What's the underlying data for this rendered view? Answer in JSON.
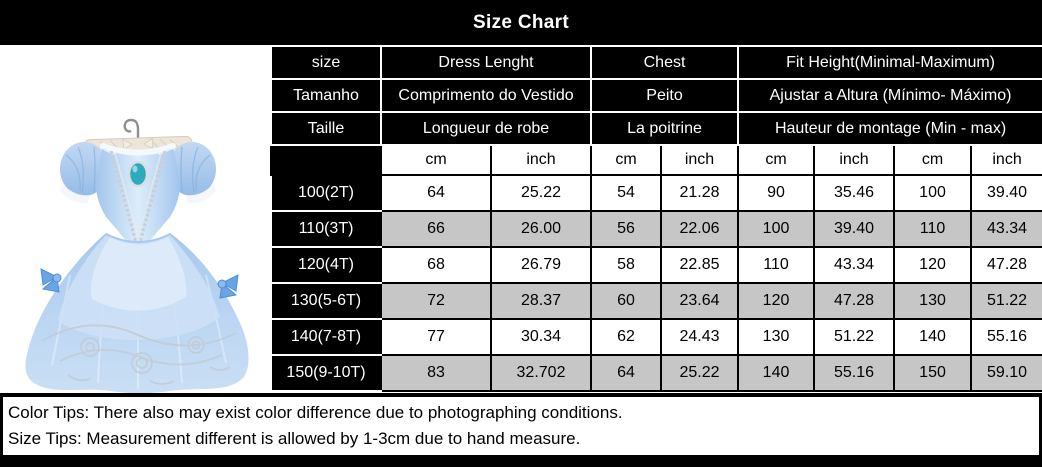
{
  "title": "Size Chart",
  "colors": {
    "header_bg": "#000000",
    "header_text": "#ffffff",
    "row_alt_gray": "#c6c6c6",
    "dress_blue": "#a9c9ec",
    "brooch_teal": "#2fa9bd"
  },
  "product_image": {
    "alt": "light blue princess dress on a padded hanger"
  },
  "table": {
    "header_rows": [
      {
        "size": "size",
        "dress": "Dress Lenght",
        "chest": "Chest",
        "fit": "Fit Height(Minimal-Maximum)"
      },
      {
        "size": "Tamanho",
        "dress": "Comprimento do Vestido",
        "chest": "Peito",
        "fit": "Ajustar a Altura (Mínimo- Máximo)"
      },
      {
        "size": "Taille",
        "dress": "Longueur de robe",
        "chest": "La poitrine",
        "fit": "Hauteur de montage (Min - max)"
      }
    ],
    "unit_row": [
      "cm",
      "inch",
      "cm",
      "inch",
      "cm",
      "inch",
      "cm",
      "inch"
    ],
    "rows": [
      {
        "size": "100(2T)",
        "values": [
          "64",
          "25.22",
          "54",
          "21.28",
          "90",
          "35.46",
          "100",
          "39.40"
        ]
      },
      {
        "size": "110(3T)",
        "values": [
          "66",
          "26.00",
          "56",
          "22.06",
          "100",
          "39.40",
          "110",
          "43.34"
        ]
      },
      {
        "size": "120(4T)",
        "values": [
          "68",
          "26.79",
          "58",
          "22.85",
          "110",
          "43.34",
          "120",
          "47.28"
        ]
      },
      {
        "size": "130(5-6T)",
        "values": [
          "72",
          "28.37",
          "60",
          "23.64",
          "120",
          "47.28",
          "130",
          "51.22"
        ]
      },
      {
        "size": "140(7-8T)",
        "values": [
          "77",
          "30.34",
          "62",
          "24.43",
          "130",
          "51.22",
          "140",
          "55.16"
        ]
      },
      {
        "size": "150(9-10T)",
        "values": [
          "83",
          "32.702",
          "64",
          "25.22",
          "140",
          "55.16",
          "150",
          "59.10"
        ]
      }
    ]
  },
  "tips": [
    "Color Tips: There also may exist color difference due to photographing conditions.",
    "Size Tips: Measurement different is allowed by 1-3cm due to hand measure."
  ],
  "chart_data": {
    "type": "table",
    "title": "Size Chart",
    "columns": [
      "size",
      "Dress Lenght cm",
      "Dress Lenght inch",
      "Chest cm",
      "Chest inch",
      "Fit Height min cm",
      "Fit Height min inch",
      "Fit Height max cm",
      "Fit Height max inch"
    ],
    "rows": [
      [
        "100(2T)",
        64,
        25.22,
        54,
        21.28,
        90,
        35.46,
        100,
        39.4
      ],
      [
        "110(3T)",
        66,
        26.0,
        56,
        22.06,
        100,
        39.4,
        110,
        43.34
      ],
      [
        "120(4T)",
        68,
        26.79,
        58,
        22.85,
        110,
        43.34,
        120,
        47.28
      ],
      [
        "130(5-6T)",
        72,
        28.37,
        60,
        23.64,
        120,
        47.28,
        130,
        51.22
      ],
      [
        "140(7-8T)",
        77,
        30.34,
        62,
        24.43,
        130,
        51.22,
        140,
        55.16
      ],
      [
        "150(9-10T)",
        83,
        32.702,
        64,
        25.22,
        140,
        55.16,
        150,
        59.1
      ]
    ]
  }
}
